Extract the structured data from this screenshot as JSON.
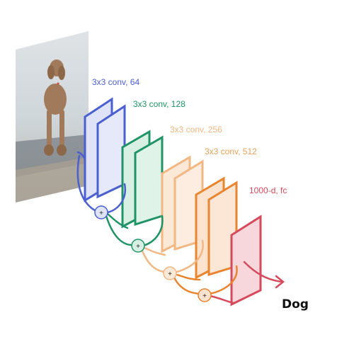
{
  "colors": {
    "stage1": "#4a5fd0",
    "stage2": "#1f9466",
    "stage3": "#f2b782",
    "stage4": "#e9842f",
    "fc": "#d54a5c",
    "fill1": "#dfe3f8",
    "fill2": "#d8efe4",
    "fill3": "#fbe9d8",
    "fill4": "#fbe3cf",
    "fillfc": "#f7d7dc"
  },
  "photo": {
    "subject": "poodle-dog-photo"
  },
  "stages": [
    {
      "label": "3x3 conv, 64"
    },
    {
      "label": "3x3 conv, 128"
    },
    {
      "label": "3x3 conv, 256"
    },
    {
      "label": "3x3 conv, 512"
    }
  ],
  "fc_label": "1000-d, fc",
  "output_label": "Dog",
  "junction_symbol": "+"
}
